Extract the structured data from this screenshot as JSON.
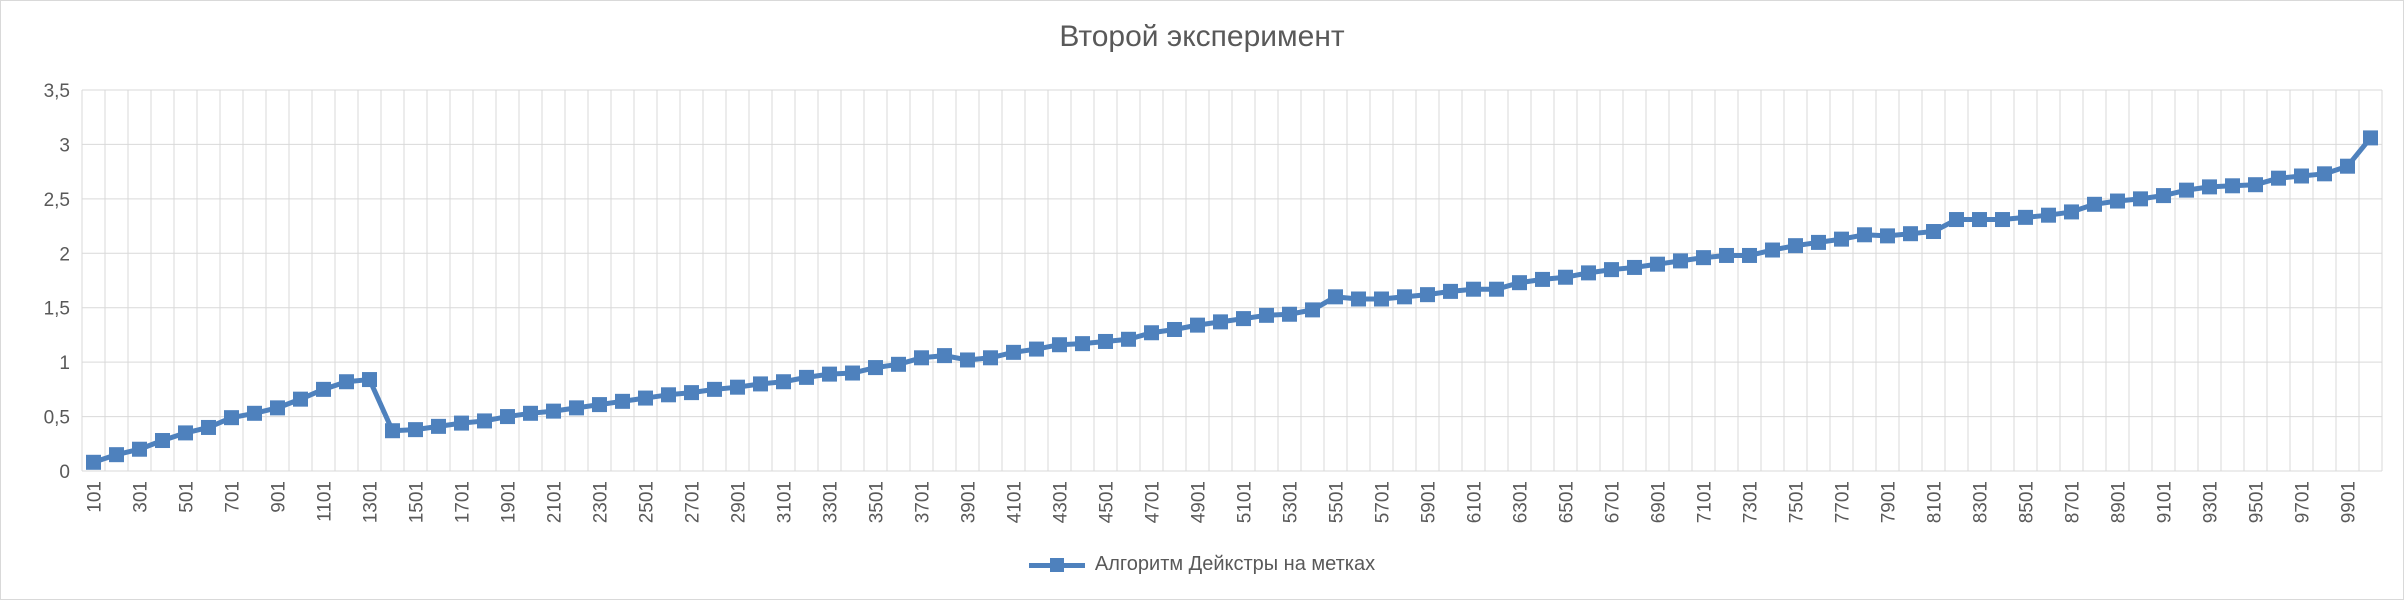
{
  "chart_data": {
    "type": "line",
    "title": "Второй эксперимент",
    "xlabel": "",
    "ylabel": "",
    "ylim": [
      0,
      3.5
    ],
    "y_ticks": [
      "0",
      "0,5",
      "1",
      "1,5",
      "2",
      "2,5",
      "3",
      "3,5"
    ],
    "grid": true,
    "legend_position": "bottom",
    "x_labels_shown_every": 2,
    "x": [
      101,
      201,
      301,
      401,
      501,
      601,
      701,
      801,
      901,
      1001,
      1101,
      1201,
      1301,
      1401,
      1501,
      1601,
      1701,
      1801,
      1901,
      2001,
      2101,
      2201,
      2301,
      2401,
      2501,
      2601,
      2701,
      2801,
      2901,
      3001,
      3101,
      3201,
      3301,
      3401,
      3501,
      3601,
      3701,
      3801,
      3901,
      4001,
      4101,
      4201,
      4301,
      4401,
      4501,
      4601,
      4701,
      4801,
      4901,
      5001,
      5101,
      5201,
      5301,
      5401,
      5501,
      5601,
      5701,
      5801,
      5901,
      6001,
      6101,
      6201,
      6301,
      6401,
      6501,
      6601,
      6701,
      6801,
      6901,
      7001,
      7101,
      7201,
      7301,
      7401,
      7501,
      7601,
      7701,
      7801,
      7901,
      8001,
      8101,
      8201,
      8301,
      8401,
      8501,
      8601,
      8701,
      8801,
      8901,
      9001,
      9101,
      9201,
      9301,
      9401,
      9501,
      9601,
      9701,
      9801,
      9901,
      10001
    ],
    "series": [
      {
        "name": "Алгоритм Дейкстры на метках",
        "color": "#4e81bd",
        "marker": "square",
        "values": [
          0.08,
          0.15,
          0.2,
          0.28,
          0.35,
          0.4,
          0.49,
          0.53,
          0.58,
          0.66,
          0.75,
          0.82,
          0.84,
          0.37,
          0.38,
          0.41,
          0.44,
          0.46,
          0.5,
          0.53,
          0.55,
          0.58,
          0.61,
          0.64,
          0.67,
          0.7,
          0.72,
          0.75,
          0.77,
          0.8,
          0.82,
          0.86,
          0.89,
          0.9,
          0.95,
          0.98,
          1.04,
          1.06,
          1.02,
          1.04,
          1.09,
          1.12,
          1.16,
          1.17,
          1.19,
          1.21,
          1.27,
          1.3,
          1.34,
          1.37,
          1.4,
          1.43,
          1.44,
          1.48,
          1.6,
          1.58,
          1.58,
          1.6,
          1.62,
          1.65,
          1.67,
          1.67,
          1.73,
          1.76,
          1.78,
          1.82,
          1.85,
          1.87,
          1.9,
          1.93,
          1.96,
          1.98,
          1.98,
          2.03,
          2.07,
          2.1,
          2.13,
          2.17,
          2.16,
          2.18,
          2.2,
          2.31,
          2.31,
          2.31,
          2.33,
          2.35,
          2.38,
          2.45,
          2.48,
          2.5,
          2.53,
          2.58,
          2.61,
          2.62,
          2.63,
          2.69,
          2.71,
          2.73,
          2.8,
          3.06
        ]
      }
    ]
  }
}
